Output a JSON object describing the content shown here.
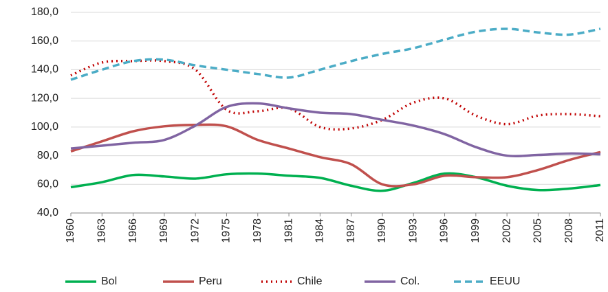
{
  "chart_data": {
    "type": "line",
    "x": [
      1960,
      1963,
      1966,
      1969,
      1972,
      1975,
      1978,
      1981,
      1984,
      1987,
      1990,
      1993,
      1996,
      1999,
      2002,
      2005,
      2008,
      2011
    ],
    "series": [
      {
        "name": "Bol",
        "color": "#00b050",
        "dash": "solid",
        "values": [
          58,
          61.5,
          66.5,
          65.5,
          64,
          67,
          67.5,
          66,
          64.5,
          59,
          55.5,
          61,
          67.5,
          65,
          59,
          56,
          57,
          59.5
        ]
      },
      {
        "name": "Peru",
        "color": "#c0504d",
        "dash": "solid",
        "values": [
          83,
          90,
          97,
          100.5,
          101.5,
          100.5,
          91,
          85,
          79,
          74,
          60,
          60,
          66,
          65,
          65,
          70,
          77,
          82.5
        ]
      },
      {
        "name": "Chile",
        "color": "#c00000",
        "dash": "dotted",
        "values": [
          136,
          145,
          146,
          146,
          140,
          112,
          111,
          113,
          100,
          99,
          105,
          117,
          120,
          108,
          102,
          108,
          109,
          107.5
        ]
      },
      {
        "name": "Col.",
        "color": "#8064a2",
        "dash": "solid",
        "values": [
          85,
          87,
          89,
          91,
          101,
          114,
          116.5,
          113,
          110,
          109,
          105,
          101,
          95,
          86,
          80,
          80.5,
          81.5,
          81
        ]
      },
      {
        "name": "EEUU",
        "color": "#4bacc6",
        "dash": "dashed",
        "values": [
          133,
          140,
          146,
          147,
          143,
          140,
          137,
          134.5,
          140,
          146,
          151,
          155,
          161,
          166.5,
          168.5,
          166,
          164.5,
          168.5
        ]
      }
    ],
    "xlim": [
      1960,
      2011
    ],
    "xticks": [
      1960,
      1963,
      1966,
      1969,
      1972,
      1975,
      1978,
      1981,
      1984,
      1987,
      1990,
      1993,
      1996,
      1999,
      2002,
      2005,
      2008,
      2011
    ],
    "ylim": [
      40,
      180
    ],
    "yticks": [
      {
        "value": 40,
        "label": "40,0"
      },
      {
        "value": 60,
        "label": "60,0"
      },
      {
        "value": 80,
        "label": "80,0"
      },
      {
        "value": 100,
        "label": "100,0"
      },
      {
        "value": 120,
        "label": "120,0"
      },
      {
        "value": 140,
        "label": "140,0"
      },
      {
        "value": 160,
        "label": "160,0"
      },
      {
        "value": 180,
        "label": "180,0"
      }
    ],
    "grid": true,
    "legend": "bottom"
  }
}
